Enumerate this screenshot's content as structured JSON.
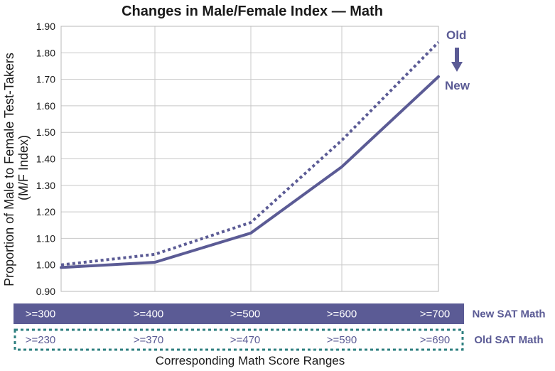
{
  "chart_data": {
    "type": "line",
    "title": "Changes in Male/Female Index — Math",
    "ylabel_line1": "Proportion of Male to Female Test-Takers",
    "ylabel_line2": "(M/F Index)",
    "xlabel": "Corresponding Math Score Ranges",
    "ylim": [
      0.9,
      1.9
    ],
    "yticks": [
      "0.90",
      "1.00",
      "1.10",
      "1.20",
      "1.30",
      "1.40",
      "1.50",
      "1.60",
      "1.70",
      "1.80",
      "1.90"
    ],
    "categories_new": [
      ">=300",
      ">=400",
      ">=500",
      ">=600",
      ">=700"
    ],
    "categories_old": [
      ">=230",
      ">=370",
      ">=470",
      ">=590",
      ">=690"
    ],
    "series": [
      {
        "name": "Old",
        "values": [
          1.0,
          1.04,
          1.16,
          1.47,
          1.84
        ],
        "style": "dotted",
        "color": "#5b5b95"
      },
      {
        "name": "New",
        "values": [
          0.99,
          1.01,
          1.12,
          1.37,
          1.71
        ],
        "style": "solid",
        "color": "#5b5b95"
      }
    ],
    "band_labels": {
      "new": "New SAT Math",
      "old": "Old SAT Math"
    },
    "annotations": {
      "old": "Old",
      "new": "New"
    },
    "colors": {
      "accent": "#5b5b95",
      "old_band_border": "#2e7f7f",
      "grid": "#c8c8c8"
    },
    "grid": true
  }
}
